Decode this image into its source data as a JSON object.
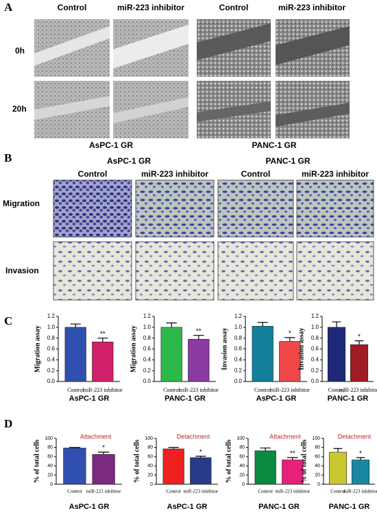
{
  "panel_a": {
    "label": "A",
    "left_columns": [
      "Control",
      "miR-223 inhibitor"
    ],
    "right_columns": [
      "Control",
      "miR-223 inhibitor"
    ],
    "rows": [
      "0h",
      "20h"
    ],
    "left_caption": "AsPC-1 GR",
    "right_caption": "PANC-1 GR"
  },
  "panel_b": {
    "label": "B",
    "groups": [
      "AsPC-1 GR",
      "PANC-1 GR"
    ],
    "columns": [
      "Control",
      "miR-223 inhibitor",
      "Control",
      "miR-223 inhibitor"
    ],
    "rows": [
      "Migration",
      "Invasion"
    ]
  },
  "panel_c": {
    "label": "C"
  },
  "panel_d": {
    "label": "D"
  },
  "chart_data": [
    {
      "type": "bar",
      "ylabel": "Migration assay",
      "xlabel": "AsPC-1 GR",
      "categories": [
        "Control",
        "miR-223 inhibitor"
      ],
      "values": [
        1.0,
        0.73
      ],
      "errors": [
        0.06,
        0.07
      ],
      "colors": [
        "#3050b0",
        "#d0206a"
      ],
      "annotation": "**",
      "ylim": [
        0,
        1.2
      ],
      "yticks": [
        {
          "value": 0,
          "label": "0.0"
        },
        {
          "value": 0.2,
          "label": "0.2"
        },
        {
          "value": 0.4,
          "label": "0.4"
        },
        {
          "value": 0.6,
          "label": "0.6"
        },
        {
          "value": 0.8,
          "label": "0.8"
        },
        {
          "value": 1,
          "label": "1.0"
        },
        {
          "value": 1.2,
          "label": "1.2"
        }
      ]
    },
    {
      "type": "bar",
      "ylabel": "Migration assay",
      "xlabel": "PANC-1 GR",
      "categories": [
        "Control",
        "miR-223 inhibitor"
      ],
      "values": [
        1.0,
        0.78
      ],
      "errors": [
        0.08,
        0.07
      ],
      "colors": [
        "#2db84a",
        "#8a3aa0"
      ],
      "annotation": "**",
      "ylim": [
        0,
        1.2
      ],
      "yticks": [
        {
          "value": 0,
          "label": "0.0"
        },
        {
          "value": 0.2,
          "label": "0.2"
        },
        {
          "value": 0.4,
          "label": "0.4"
        },
        {
          "value": 0.6,
          "label": "0.6"
        },
        {
          "value": 0.8,
          "label": "0.8"
        },
        {
          "value": 1,
          "label": "1.0"
        },
        {
          "value": 1.2,
          "label": "1.2"
        }
      ]
    },
    {
      "type": "bar",
      "ylabel": "Invasion assay",
      "xlabel": "AsPC-1 GR",
      "categories": [
        "Control",
        "miR-223 inhibitor"
      ],
      "values": [
        1.02,
        0.74
      ],
      "errors": [
        0.07,
        0.07
      ],
      "colors": [
        "#12809a",
        "#ef4747"
      ],
      "annotation": "*",
      "ylim": [
        0,
        1.2
      ],
      "yticks": [
        {
          "value": 0,
          "label": "0.0"
        },
        {
          "value": 0.2,
          "label": "0.2"
        },
        {
          "value": 0.4,
          "label": "0.4"
        },
        {
          "value": 0.6,
          "label": "0.6"
        },
        {
          "value": 0.8,
          "label": "0.8"
        },
        {
          "value": 1,
          "label": "1.0"
        },
        {
          "value": 1.2,
          "label": "1.2"
        }
      ]
    },
    {
      "type": "bar",
      "ylabel": "Invasion assay",
      "xlabel": "PANC-1 GR",
      "categories": [
        "Control",
        "miR-223 inhibitor"
      ],
      "values": [
        1.0,
        0.68
      ],
      "errors": [
        0.1,
        0.07
      ],
      "colors": [
        "#1e2a78",
        "#a01c24"
      ],
      "annotation": "*",
      "ylim": [
        0,
        1.2
      ],
      "yticks": [
        {
          "value": 0,
          "label": "0.0"
        },
        {
          "value": 0.2,
          "label": "0.2"
        },
        {
          "value": 0.4,
          "label": "0.4"
        },
        {
          "value": 0.6,
          "label": "0.6"
        },
        {
          "value": 0.8,
          "label": "0.8"
        },
        {
          "value": 1,
          "label": "1.0"
        },
        {
          "value": 1.2,
          "label": "1.2"
        }
      ]
    },
    {
      "type": "bar",
      "title": "Attachment",
      "ylabel": "% of total cells",
      "xlabel": "AsPC-1 GR",
      "categories": [
        "Control",
        "miR-223 inhibitor"
      ],
      "values": [
        79,
        65
      ],
      "errors": [
        1,
        5
      ],
      "colors": [
        "#3050b0",
        "#7a2a80"
      ],
      "annotation": "*",
      "ylim": [
        0,
        100
      ],
      "yticks": [
        0,
        20,
        40,
        60,
        80,
        100
      ]
    },
    {
      "type": "bar",
      "title": "Detachment",
      "ylabel": "% of total cells",
      "xlabel": "AsPC-1 GR",
      "categories": [
        "Control",
        "miR-223 inhibitor"
      ],
      "values": [
        77,
        58
      ],
      "errors": [
        3,
        3
      ],
      "colors": [
        "#ee2020",
        "#2a3a8a"
      ],
      "annotation": "*",
      "ylim": [
        0,
        100
      ],
      "yticks": [
        0,
        20,
        40,
        60,
        80,
        100
      ]
    },
    {
      "type": "bar",
      "title": "Attachment",
      "ylabel": "% of total cells",
      "xlabel": "PANC-1 GR",
      "categories": [
        "Control",
        "miR-223 inhibitor"
      ],
      "values": [
        73,
        53
      ],
      "errors": [
        6,
        5
      ],
      "colors": [
        "#0a8a40",
        "#e8207a"
      ],
      "annotation": "**",
      "ylim": [
        0,
        100
      ],
      "yticks": [
        0,
        20,
        40,
        60,
        80,
        100
      ]
    },
    {
      "type": "bar",
      "title": "Detachment",
      "ylabel": "% of total cells",
      "xlabel": "PANC-1 GR",
      "categories": [
        "Control",
        "miR-223 inhibitor"
      ],
      "values": [
        70,
        53
      ],
      "errors": [
        8,
        5
      ],
      "colors": [
        "#c8c830",
        "#1888a0"
      ],
      "annotation": "*",
      "ylim": [
        0,
        100
      ],
      "yticks": [
        0,
        20,
        40,
        60,
        80,
        100
      ]
    }
  ]
}
